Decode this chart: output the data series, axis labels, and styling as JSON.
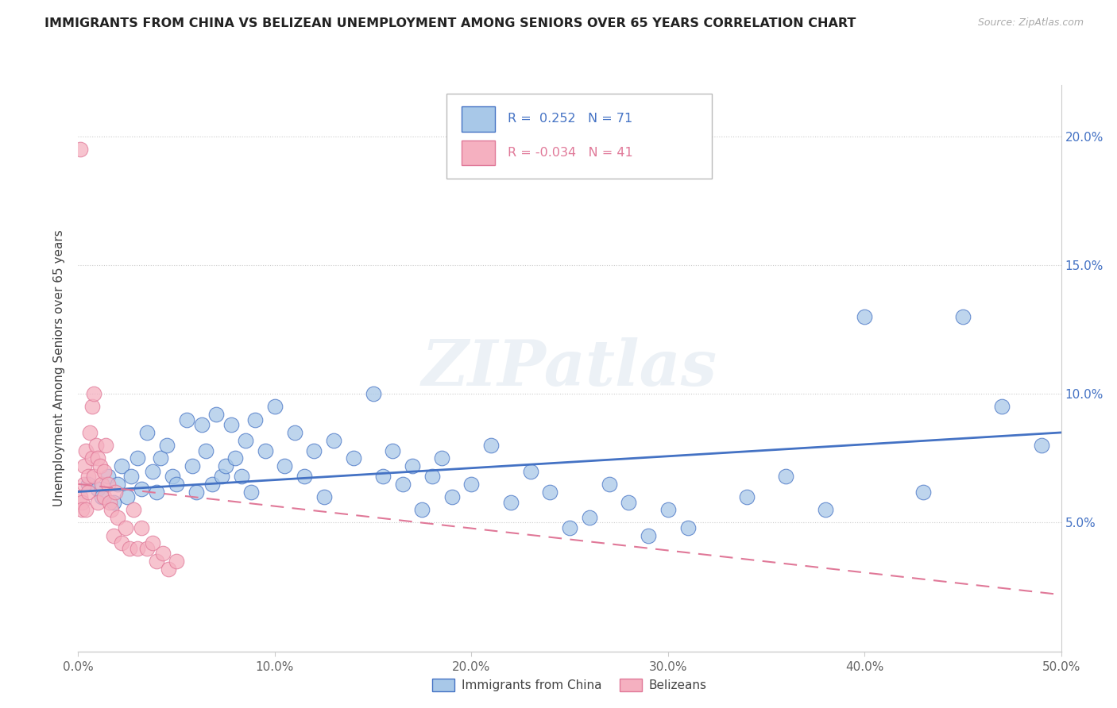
{
  "title": "IMMIGRANTS FROM CHINA VS BELIZEAN UNEMPLOYMENT AMONG SENIORS OVER 65 YEARS CORRELATION CHART",
  "source": "Source: ZipAtlas.com",
  "ylabel": "Unemployment Among Seniors over 65 years",
  "legend_labels": [
    "Immigrants from China",
    "Belizeans"
  ],
  "r_china": "0.252",
  "n_china": 71,
  "r_belize": "-0.034",
  "n_belize": 41,
  "xlim": [
    0.0,
    0.5
  ],
  "ylim": [
    0.0,
    0.22
  ],
  "xticks": [
    0.0,
    0.1,
    0.2,
    0.3,
    0.4,
    0.5
  ],
  "xtick_labels": [
    "0.0%",
    "10.0%",
    "20.0%",
    "30.0%",
    "40.0%",
    "50.0%"
  ],
  "yticks": [
    0.05,
    0.1,
    0.15,
    0.2
  ],
  "ytick_labels": [
    "5.0%",
    "10.0%",
    "15.0%",
    "20.0%"
  ],
  "color_china": "#a8c8e8",
  "color_belize": "#f5b0c0",
  "line_color_china": "#4472c4",
  "line_color_belize": "#e07898",
  "watermark": "ZIPatlas",
  "china_x": [
    0.005,
    0.01,
    0.012,
    0.015,
    0.018,
    0.02,
    0.022,
    0.025,
    0.027,
    0.03,
    0.032,
    0.035,
    0.038,
    0.04,
    0.042,
    0.045,
    0.048,
    0.05,
    0.055,
    0.058,
    0.06,
    0.063,
    0.065,
    0.068,
    0.07,
    0.073,
    0.075,
    0.078,
    0.08,
    0.083,
    0.085,
    0.088,
    0.09,
    0.095,
    0.1,
    0.105,
    0.11,
    0.115,
    0.12,
    0.125,
    0.13,
    0.14,
    0.15,
    0.155,
    0.16,
    0.165,
    0.17,
    0.175,
    0.18,
    0.185,
    0.19,
    0.2,
    0.21,
    0.22,
    0.23,
    0.24,
    0.25,
    0.26,
    0.27,
    0.28,
    0.29,
    0.3,
    0.31,
    0.34,
    0.36,
    0.38,
    0.4,
    0.43,
    0.45,
    0.47,
    0.49
  ],
  "china_y": [
    0.065,
    0.063,
    0.06,
    0.068,
    0.058,
    0.065,
    0.072,
    0.06,
    0.068,
    0.075,
    0.063,
    0.085,
    0.07,
    0.062,
    0.075,
    0.08,
    0.068,
    0.065,
    0.09,
    0.072,
    0.062,
    0.088,
    0.078,
    0.065,
    0.092,
    0.068,
    0.072,
    0.088,
    0.075,
    0.068,
    0.082,
    0.062,
    0.09,
    0.078,
    0.095,
    0.072,
    0.085,
    0.068,
    0.078,
    0.06,
    0.082,
    0.075,
    0.1,
    0.068,
    0.078,
    0.065,
    0.072,
    0.055,
    0.068,
    0.075,
    0.06,
    0.065,
    0.08,
    0.058,
    0.07,
    0.062,
    0.048,
    0.052,
    0.065,
    0.058,
    0.045,
    0.055,
    0.048,
    0.06,
    0.068,
    0.055,
    0.13,
    0.062,
    0.13,
    0.095,
    0.08
  ],
  "belize_x": [
    0.001,
    0.002,
    0.002,
    0.003,
    0.003,
    0.004,
    0.004,
    0.005,
    0.005,
    0.006,
    0.007,
    0.007,
    0.008,
    0.008,
    0.009,
    0.01,
    0.01,
    0.011,
    0.012,
    0.013,
    0.013,
    0.014,
    0.015,
    0.016,
    0.017,
    0.018,
    0.019,
    0.02,
    0.022,
    0.024,
    0.026,
    0.028,
    0.03,
    0.032,
    0.035,
    0.038,
    0.04,
    0.043,
    0.046,
    0.05,
    0.001
  ],
  "belize_y": [
    0.06,
    0.058,
    0.055,
    0.072,
    0.065,
    0.078,
    0.055,
    0.068,
    0.062,
    0.085,
    0.095,
    0.075,
    0.1,
    0.068,
    0.08,
    0.075,
    0.058,
    0.072,
    0.065,
    0.07,
    0.06,
    0.08,
    0.065,
    0.058,
    0.055,
    0.045,
    0.062,
    0.052,
    0.042,
    0.048,
    0.04,
    0.055,
    0.04,
    0.048,
    0.04,
    0.042,
    0.035,
    0.038,
    0.032,
    0.035,
    0.195
  ],
  "china_trend": [
    0.062,
    0.085
  ],
  "belize_trend_start": 0.065,
  "belize_trend_end": 0.022,
  "belize_trend_end_x": 0.5
}
